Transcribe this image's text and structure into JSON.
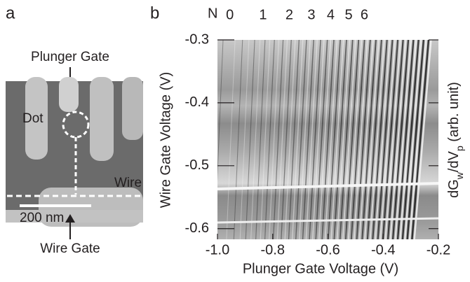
{
  "panel_a": {
    "label": "a",
    "plunger_gate": "Plunger Gate",
    "dot": "Dot",
    "wire": "Wire",
    "scale_bar": "200 nm",
    "wire_gate": "Wire Gate"
  },
  "chart_data": {
    "type": "heatmap",
    "panel_label": "b",
    "x_label": "Plunger Gate Voltage (V)",
    "y_label": "Wire Gate Voltage (V)",
    "colorbar_label": [
      "dG",
      "w",
      "/dV",
      "p",
      " (arb. unit)"
    ],
    "xlim": [
      -1.0,
      -0.2
    ],
    "ylim": [
      -0.617,
      -0.3
    ],
    "xticks": [
      {
        "value": -1.0,
        "label": "-1.0"
      },
      -0.8,
      -0.6,
      -0.4,
      -0.2
    ],
    "yticks": [
      -0.6,
      -0.5,
      -0.4,
      -0.3
    ],
    "electron_number": {
      "label": "N",
      "x": [
        -0.955,
        -0.835,
        -0.74,
        -0.66,
        -0.59,
        -0.525,
        -0.468
      ],
      "n": [
        0,
        1,
        2,
        3,
        4,
        5,
        6
      ]
    }
  }
}
